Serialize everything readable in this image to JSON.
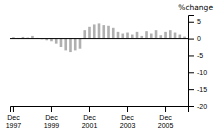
{
  "chart_data": {
    "type": "bar",
    "title": "%change",
    "categories": [
      "Dec\n1997",
      null,
      null,
      null,
      null,
      null,
      null,
      null,
      "Dec\n1999",
      null,
      null,
      null,
      null,
      null,
      null,
      null,
      "Dec\n2001",
      null,
      null,
      null,
      null,
      null,
      null,
      null,
      "Dec\n2003",
      null,
      null,
      null,
      null,
      null,
      null,
      null,
      "Dec\n2005",
      null,
      null,
      null,
      null
    ],
    "values": [
      0.4,
      0.2,
      0.5,
      0.3,
      0.8,
      0.2,
      -0.2,
      -0.5,
      -0.8,
      -1.5,
      -2.5,
      -3.5,
      -4.0,
      -3.5,
      -3.0,
      2.5,
      3.5,
      4.2,
      4.5,
      4.0,
      3.8,
      3.2,
      2.0,
      1.5,
      1.8,
      1.2,
      2.0,
      0.8,
      2.2,
      1.5,
      2.5,
      1.0,
      2.0,
      2.5,
      1.8,
      1.2,
      0.6
    ],
    "color": "#b0b0b0",
    "ylim": [
      -20,
      7
    ],
    "yticks": [
      5,
      0,
      -5,
      -10,
      -15,
      -20
    ],
    "grid": false
  }
}
